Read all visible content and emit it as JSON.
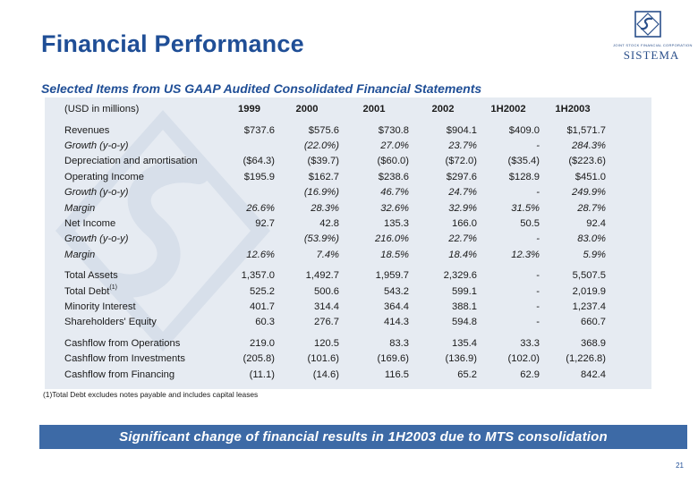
{
  "title": "Financial Performance",
  "subtitle": "Selected Items from US GAAP Audited Consolidated Financial Statements",
  "logo": {
    "small_text": "JOINT STOCK FINANCIAL CORPORATION",
    "name": "SISTEMA"
  },
  "table": {
    "unit_label": "(USD in millions)",
    "columns": [
      "1999",
      "2000",
      "2001",
      "2002",
      "1H2002",
      "1H2003"
    ],
    "rows": [
      {
        "label": "Revenues",
        "values": [
          "$737.6",
          "$575.6",
          "$730.8",
          "$904.1",
          "$409.0",
          "$1,571.7"
        ]
      },
      {
        "label": "Growth (y-o-y)",
        "values": [
          "",
          "(22.0%)",
          "27.0%",
          "23.7%",
          "-",
          "284.3%"
        ]
      },
      {
        "label": "Depreciation and amortisation",
        "values": [
          "($64.3)",
          "($39.7)",
          "($60.0)",
          "($72.0)",
          "($35.4)",
          "($223.6)"
        ]
      },
      {
        "label": "Operating Income",
        "values": [
          "$195.9",
          "$162.7",
          "$238.6",
          "$297.6",
          "$128.9",
          "$451.0"
        ]
      },
      {
        "label": "Growth (y-o-y)",
        "values": [
          "",
          "(16.9%)",
          "46.7%",
          "24.7%",
          "-",
          "249.9%"
        ]
      },
      {
        "label": "Margin",
        "values": [
          "26.6%",
          "28.3%",
          "32.6%",
          "32.9%",
          "31.5%",
          "28.7%"
        ]
      },
      {
        "label": "Net Income",
        "values": [
          "92.7",
          "42.8",
          "135.3",
          "166.0",
          "50.5",
          "92.4"
        ]
      },
      {
        "label": "Growth (y-o-y)",
        "values": [
          "",
          "(53.9%)",
          "216.0%",
          "22.7%",
          "-",
          "83.0%"
        ]
      },
      {
        "label": "Margin",
        "values": [
          "12.6%",
          "7.4%",
          "18.5%",
          "18.4%",
          "12.3%",
          "5.9%"
        ]
      },
      {
        "label": "Total Assets",
        "values": [
          "1,357.0",
          "1,492.7",
          "1,959.7",
          "2,329.6",
          "-",
          "5,507.5"
        ]
      },
      {
        "label": "Total Debt",
        "sup": "(1)",
        "values": [
          "525.2",
          "500.6",
          "543.2",
          "599.1",
          "-",
          "2,019.9"
        ]
      },
      {
        "label": "Minority Interest",
        "values": [
          "401.7",
          "314.4",
          "364.4",
          "388.1",
          "-",
          "1,237.4"
        ]
      },
      {
        "label": "Shareholders' Equity",
        "values": [
          "60.3",
          "276.7",
          "414.3",
          "594.8",
          "-",
          "660.7"
        ]
      },
      {
        "label": "Cashflow from Operations",
        "values": [
          "219.0",
          "120.5",
          "83.3",
          "135.4",
          "33.3",
          "368.9"
        ]
      },
      {
        "label": "Cashflow from Investments",
        "values": [
          "(205.8)",
          "(101.6)",
          "(169.6)",
          "(136.9)",
          "(102.0)",
          "(1,226.8)"
        ]
      },
      {
        "label": "Cashflow from Financing",
        "values": [
          "(11.1)",
          "(14.6)",
          "116.5",
          "65.2",
          "62.9",
          "842.4"
        ]
      }
    ]
  },
  "footnote": "(1)Total Debt excludes notes payable and includes capital leases",
  "banner": "Significant change of financial results in 1H2003 due to MTS consolidation",
  "page_number": "21",
  "colors": {
    "title": "#1f4e96",
    "banner_bg": "#3d6aa6",
    "panel_bg": "#e6ebf2"
  }
}
